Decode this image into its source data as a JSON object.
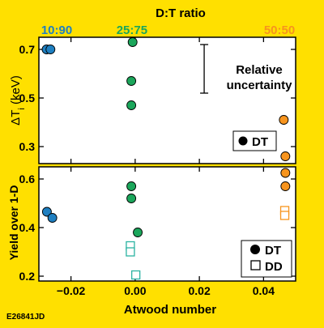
{
  "figure_id": "E26841JD",
  "colors": {
    "background": "#FFE000",
    "panel": "#FFFFFF",
    "axis": "#000000",
    "blue": "#1E7FC1",
    "green": "#1BA65B",
    "orange": "#F7941D",
    "teal": "#2BB3A2"
  },
  "chart_data": [
    {
      "type": "scatter",
      "panel": "top",
      "title": "D:T ratio",
      "top_labels": [
        {
          "text": "10:90",
          "x": -0.027,
          "color": "blue"
        },
        {
          "text": "25:75",
          "x": -0.001,
          "color": "green"
        },
        {
          "text": "50:50",
          "x": 0.046,
          "color": "orange"
        }
      ],
      "ylabel": "ΔT",
      "ylabel_sub": "i",
      "ylabel_unit": " (keV)",
      "xlim": [
        -0.03,
        0.05
      ],
      "ylim": [
        0.23,
        0.75
      ],
      "xticks": [
        -0.02,
        0.0,
        0.02,
        0.04
      ],
      "yticks": [
        0.3,
        0.5,
        0.7
      ],
      "ytick_labels": [
        "0.3",
        "0.5",
        "0.7"
      ],
      "annotation": {
        "lines": [
          "Relative",
          "uncertainty"
        ],
        "x": 0.0215,
        "y_low": 0.52,
        "y_high": 0.72
      },
      "legend": {
        "position": "bottom-right",
        "entries": [
          {
            "label": "DT",
            "marker": "filled-circle"
          }
        ]
      },
      "series": [
        {
          "marker": "filled-circle",
          "color": "blue",
          "points": [
            [
              -0.0276,
              0.7
            ],
            [
              -0.0264,
              0.7
            ]
          ]
        },
        {
          "marker": "filled-circle",
          "color": "green",
          "points": [
            [
              -0.0008,
              0.73
            ],
            [
              -0.0012,
              0.57
            ],
            [
              -0.0012,
              0.47
            ]
          ]
        },
        {
          "marker": "filled-circle",
          "color": "orange",
          "points": [
            [
              0.0463,
              0.41
            ],
            [
              0.0468,
              0.26
            ]
          ]
        }
      ]
    },
    {
      "type": "scatter",
      "panel": "bottom",
      "ylabel": "Yield over 1-D",
      "xlabel": "Atwood number",
      "xlim": [
        -0.03,
        0.05
      ],
      "ylim": [
        0.18,
        0.65
      ],
      "xticks": [
        -0.02,
        0.0,
        0.02,
        0.04
      ],
      "xtick_labels": [
        "−0.02",
        "0.00",
        "0.02",
        "0.04"
      ],
      "yticks": [
        0.2,
        0.4,
        0.6
      ],
      "ytick_labels": [
        "0.2",
        "0.4",
        "0.6"
      ],
      "legend": {
        "position": "bottom-right",
        "entries": [
          {
            "label": "DT",
            "marker": "filled-circle"
          },
          {
            "label": "DD",
            "marker": "open-square"
          }
        ]
      },
      "series": [
        {
          "marker": "filled-circle",
          "color": "blue",
          "points": [
            [
              -0.0275,
              0.465
            ],
            [
              -0.0258,
              0.44
            ]
          ]
        },
        {
          "marker": "filled-circle",
          "color": "green",
          "points": [
            [
              -0.0012,
              0.57
            ],
            [
              -0.0012,
              0.52
            ],
            [
              0.0008,
              0.38
            ]
          ]
        },
        {
          "marker": "filled-circle",
          "color": "orange",
          "points": [
            [
              0.0468,
              0.625
            ],
            [
              0.0468,
              0.57
            ]
          ]
        },
        {
          "marker": "open-square",
          "color": "teal",
          "points": [
            [
              -0.0015,
              0.325
            ],
            [
              -0.0015,
              0.3
            ],
            [
              0.0002,
              0.205
            ]
          ]
        },
        {
          "marker": "open-square",
          "color": "orange",
          "points": [
            [
              0.0466,
              0.47
            ],
            [
              0.0466,
              0.45
            ]
          ]
        }
      ]
    }
  ]
}
